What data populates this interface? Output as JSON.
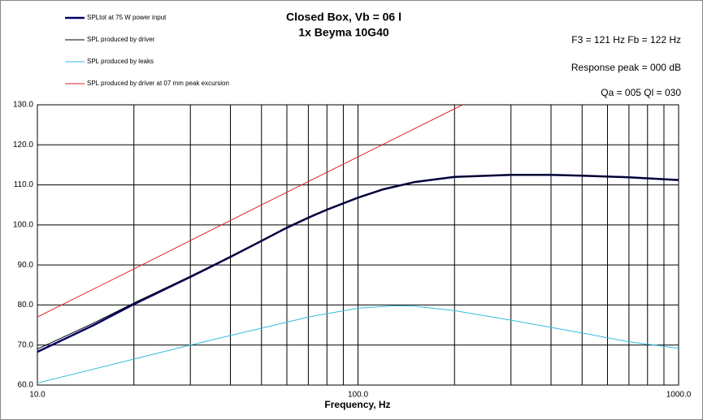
{
  "chart_data": {
    "type": "line",
    "title": "Closed Box, Vb = 06 l",
    "subtitle": "1x Beyma 10G40",
    "annotations": [
      "F3 = 121 Hz  Fb = 122 Hz",
      "Response peak = 000 dB",
      "Qa = 005  Ql = 030"
    ],
    "x_label": "Frequency, Hz",
    "log_x": true,
    "xlim": [
      10,
      1000
    ],
    "xticks": [
      {
        "value": 10,
        "label": "10.0"
      },
      {
        "value": 100,
        "label": "100.0"
      },
      {
        "value": 1000,
        "label": "1000.0"
      }
    ],
    "xgrid": [
      20,
      30,
      40,
      50,
      60,
      70,
      80,
      90,
      200,
      300,
      400,
      500,
      600,
      700,
      800,
      900
    ],
    "ylim": [
      60,
      130
    ],
    "yticks": [
      {
        "value": 60,
        "label": "60.0"
      },
      {
        "value": 70,
        "label": "70.0"
      },
      {
        "value": 80,
        "label": "80.0"
      },
      {
        "value": 90,
        "label": "90.0"
      },
      {
        "value": 100,
        "label": "100.0"
      },
      {
        "value": 110,
        "label": "110.0"
      },
      {
        "value": 120,
        "label": "120.0"
      },
      {
        "value": 130,
        "label": "130.0"
      }
    ],
    "grid": true,
    "legend": "top-left",
    "series": [
      {
        "name": "SPLtot at 75 W power input",
        "color": "#000066",
        "width": 2.5,
        "x": [
          10,
          15,
          20,
          30,
          40,
          50,
          60,
          70,
          80,
          100,
          120,
          150,
          200,
          300,
          400,
          500,
          700,
          1000
        ],
        "values": [
          68.3,
          75,
          80.2,
          87,
          92,
          96,
          99.3,
          101.8,
          103.8,
          106.8,
          108.9,
          110.7,
          112,
          112.5,
          112.5,
          112.3,
          111.9,
          111.2
        ]
      },
      {
        "name": "SPL produced by driver",
        "color": "#000000",
        "width": 1,
        "x": [
          10,
          15,
          20,
          30,
          40,
          50,
          60,
          70,
          80,
          100,
          120,
          150,
          200,
          300,
          400,
          500,
          700,
          1000
        ],
        "values": [
          69,
          75.5,
          80.5,
          87.2,
          92.1,
          96.1,
          99.4,
          101.9,
          103.9,
          106.8,
          108.9,
          110.7,
          112,
          112.5,
          112.5,
          112.3,
          111.9,
          111.2
        ]
      },
      {
        "name": "SPL produced by leaks",
        "color": "#33bbdd",
        "width": 1,
        "x": [
          10,
          20,
          30,
          50,
          70,
          100,
          130,
          150,
          200,
          300,
          500,
          700,
          1000
        ],
        "values": [
          60.5,
          66.5,
          70,
          74.2,
          77,
          79.2,
          79.8,
          79.7,
          78.6,
          76.2,
          73,
          70.8,
          69.2
        ]
      },
      {
        "name": "SPL produced by driver at 07 mm peak excursion",
        "color": "#dd2222",
        "width": 1,
        "x": [
          10,
          20,
          50,
          100,
          212
        ],
        "values": [
          77,
          89,
          105,
          117,
          130
        ]
      }
    ]
  }
}
